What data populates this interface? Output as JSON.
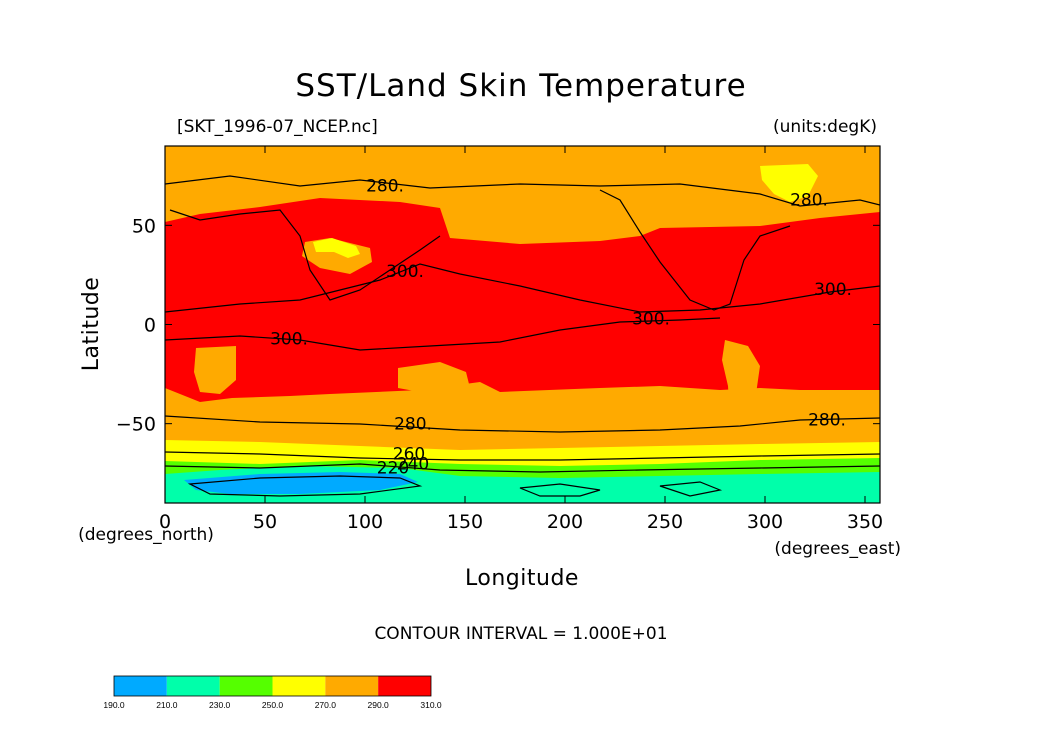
{
  "chart_data": {
    "type": "heatmap",
    "title": "SST/Land Skin Temperature",
    "file_label": "[SKT_1996-07_NCEP.nc]",
    "units_label": "(units:degK)",
    "xlabel": "Longitude",
    "ylabel": "Latitude",
    "x_unit_label": "(degrees_east)",
    "y_unit_label": "(degrees_north)",
    "xlim": [
      0,
      357.5
    ],
    "ylim": [
      -90,
      90
    ],
    "x_ticks": [
      {
        "value": 0,
        "label": "0"
      },
      {
        "value": 50,
        "label": "50"
      },
      {
        "value": 100,
        "label": "100"
      },
      {
        "value": 150,
        "label": "150"
      },
      {
        "value": 200,
        "label": "200"
      },
      {
        "value": 250,
        "label": "250"
      },
      {
        "value": 300,
        "label": "300"
      },
      {
        "value": 350,
        "label": "350"
      }
    ],
    "y_ticks": [
      {
        "value": 50,
        "label": "50"
      },
      {
        "value": 0,
        "label": "0"
      },
      {
        "value": -50,
        "label": "−50"
      }
    ],
    "contour_interval_label": "CONTOUR INTERVAL = 1.000E+01",
    "contour_labels": [
      {
        "text": "280.",
        "lon": 110,
        "lat": 70
      },
      {
        "text": "280.",
        "lon": 322,
        "lat": 63
      },
      {
        "text": "300.",
        "lon": 120,
        "lat": 27
      },
      {
        "text": "300.",
        "lon": 334,
        "lat": 18
      },
      {
        "text": "300.",
        "lon": 62,
        "lat": -7
      },
      {
        "text": "300.",
        "lon": 243,
        "lat": 3
      },
      {
        "text": "280.",
        "lon": 124,
        "lat": -50
      },
      {
        "text": "280.",
        "lon": 331,
        "lat": -48
      },
      {
        "text": "260",
        "lon": 122,
        "lat": -65
      },
      {
        "text": "220",
        "lon": 114,
        "lat": -72
      },
      {
        "text": "240",
        "lon": 124,
        "lat": -70
      }
    ],
    "colorbar": {
      "ticks": [
        "190.0",
        "210.0",
        "230.0",
        "250.0",
        "270.0",
        "290.0",
        "310.0"
      ],
      "colors": [
        "#00aaff",
        "#00ffaa",
        "#55ff00",
        "#ffff00",
        "#ffaa00",
        "#ff0000"
      ]
    },
    "latitude_bands": [
      {
        "lat_max": 90,
        "lat_min": 62,
        "level": "280-290",
        "color": "#ffaa00"
      },
      {
        "lat_max": 62,
        "lat_min": 45,
        "level": "290-310 over land, 280-290 over ocean"
      },
      {
        "lat_max": 45,
        "lat_min": -33,
        "level": "290-310",
        "color": "#ff0000"
      },
      {
        "lat_max": -33,
        "lat_min": -58,
        "level": "280-290",
        "color": "#ffaa00"
      },
      {
        "lat_max": -58,
        "lat_min": -66,
        "level": "250-270",
        "color": "#ffff00"
      },
      {
        "lat_max": -66,
        "lat_min": -72,
        "level": "230-250",
        "color": "#55ff00"
      },
      {
        "lat_max": -72,
        "lat_min": -90,
        "level": "210-230",
        "color": "#00ffaa"
      }
    ]
  }
}
